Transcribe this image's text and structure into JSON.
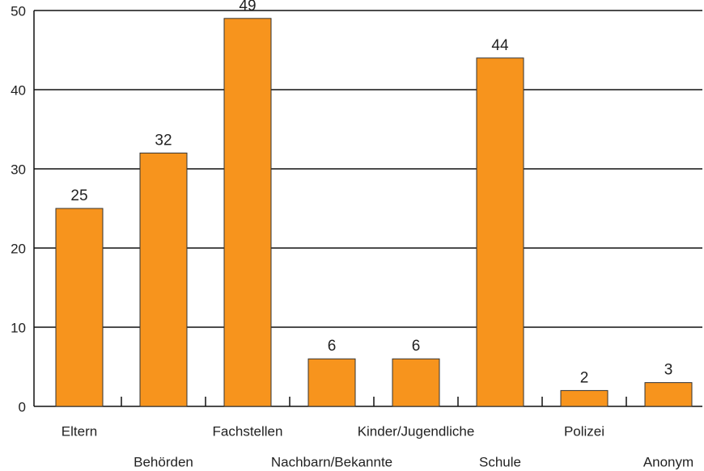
{
  "chart_data": {
    "type": "bar",
    "categories": [
      "Eltern",
      "Behörden",
      "Fachstellen",
      "Nachbarn/Bekannte",
      "Kinder/Jugendliche",
      "Schule",
      "Polizei",
      "Anonym"
    ],
    "values": [
      25,
      32,
      49,
      6,
      6,
      44,
      2,
      3
    ],
    "color": "#f7941d",
    "ylim": [
      0,
      50
    ],
    "yticks": [
      0,
      10,
      20,
      30,
      40,
      50
    ],
    "grid": true
  }
}
